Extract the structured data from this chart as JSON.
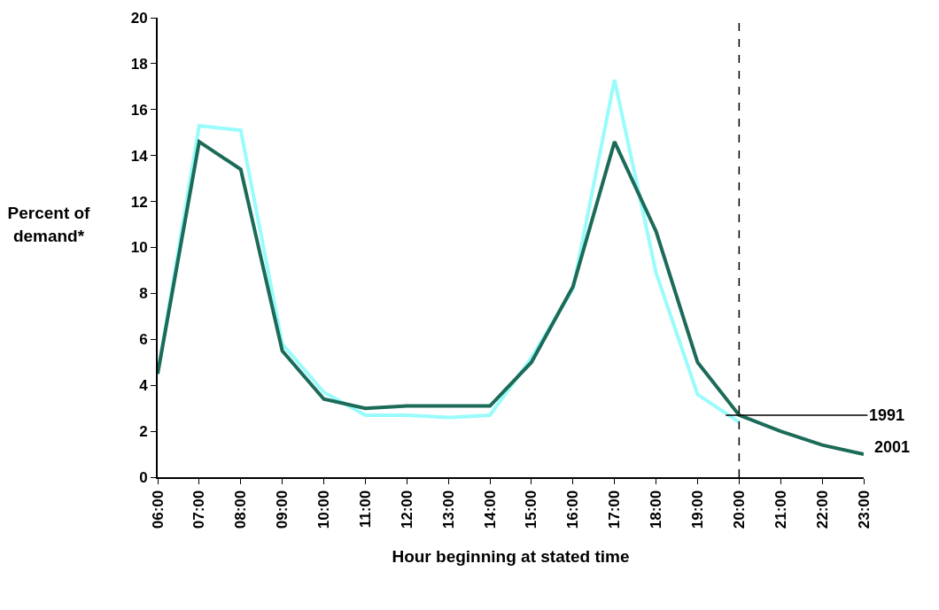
{
  "chart_data": {
    "type": "line",
    "xlabel": "Hour beginning at stated time",
    "ylabel": "Percent of demand*",
    "x": [
      6,
      7,
      8,
      9,
      10,
      11,
      12,
      13,
      14,
      15,
      16,
      17,
      18,
      19,
      20,
      21,
      22,
      23
    ],
    "series": [
      {
        "name": "1991",
        "color": "#99fbfb",
        "x": [
          6,
          7,
          8,
          9,
          10,
          11,
          12,
          13,
          14,
          15,
          16,
          17,
          18,
          19,
          20
        ],
        "values": [
          4.5,
          15.3,
          15.1,
          5.8,
          3.7,
          2.7,
          2.7,
          2.6,
          2.7,
          5.2,
          8.2,
          17.3,
          8.9,
          3.6,
          2.4
        ]
      },
      {
        "name": "2001",
        "color": "#1b6b58",
        "values": [
          4.5,
          14.6,
          13.4,
          5.5,
          3.4,
          3.0,
          3.1,
          3.1,
          3.1,
          5.0,
          8.3,
          14.6,
          10.7,
          5.0,
          2.7,
          2.0,
          1.4,
          1.0
        ]
      }
    ],
    "xlim": [
      6,
      23
    ],
    "xticks": [
      {
        "value": 6,
        "label": "06:00"
      },
      {
        "value": 7,
        "label": "07:00"
      },
      {
        "value": 8,
        "label": "08:00"
      },
      {
        "value": 9,
        "label": "09:00"
      },
      {
        "value": 10,
        "label": "10:00"
      },
      {
        "value": 11,
        "label": "11:00"
      },
      {
        "value": 12,
        "label": "12:00"
      },
      {
        "value": 13,
        "label": "13:00"
      },
      {
        "value": 14,
        "label": "14:00"
      },
      {
        "value": 15,
        "label": "15:00"
      },
      {
        "value": 16,
        "label": "16:00"
      },
      {
        "value": 17,
        "label": "17:00"
      },
      {
        "value": 18,
        "label": "18:00"
      },
      {
        "value": 19,
        "label": "19:00"
      },
      {
        "value": 20,
        "label": "20:00"
      },
      {
        "value": 21,
        "label": "21:00"
      },
      {
        "value": 22,
        "label": "22:00"
      },
      {
        "value": 23,
        "label": "23:00"
      }
    ],
    "ylim": [
      0,
      20
    ],
    "yticks": [
      0,
      2,
      4,
      6,
      8,
      10,
      12,
      14,
      16,
      18,
      20
    ],
    "ref_lines": [
      {
        "axis": "x",
        "value": 20,
        "line_style": "dashed",
        "color": "#000000"
      }
    ],
    "grid": false,
    "legend": false,
    "marker": "none",
    "line_style": "solid"
  }
}
